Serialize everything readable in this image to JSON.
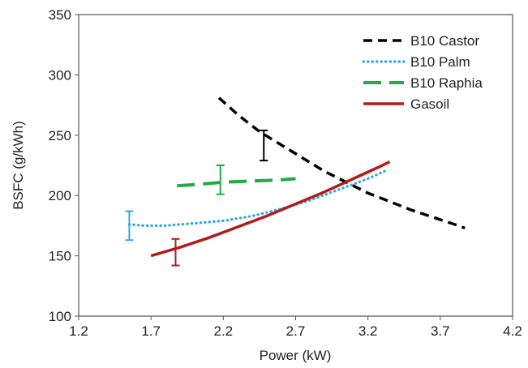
{
  "chart_data": {
    "type": "line",
    "xlabel": "Power (kW)",
    "ylabel": "BSFC (g/kWh)",
    "xlim": [
      1.2,
      4.2
    ],
    "ylim": [
      100,
      350
    ],
    "xticks": [
      1.2,
      1.7,
      2.2,
      2.7,
      3.2,
      3.7,
      4.2
    ],
    "xtick_labels": [
      "1.2",
      "1.7",
      "2.2",
      "2.7",
      "3.2",
      "3.7",
      "4.2"
    ],
    "yticks": [
      100,
      150,
      200,
      250,
      300,
      350
    ],
    "ytick_labels": [
      "100",
      "150",
      "200",
      "250",
      "300",
      "350"
    ],
    "grid": false,
    "legend_position": "top-right",
    "series": [
      {
        "name": "B10 Castor",
        "color": "#000000",
        "style": "dashed",
        "x": [
          2.17,
          2.3,
          2.45,
          2.6,
          2.75,
          2.9,
          3.05,
          3.2,
          3.35,
          3.5,
          3.65,
          3.8,
          3.87
        ],
        "y": [
          281,
          267,
          253,
          242,
          231,
          220,
          211,
          202,
          195,
          188,
          182,
          176,
          173
        ],
        "error_bar": {
          "x": 2.48,
          "low": 229,
          "high": 254
        }
      },
      {
        "name": "B10 Palm",
        "color": "#33aadd",
        "style": "dotted",
        "x": [
          1.55,
          1.65,
          1.8,
          2.0,
          2.2,
          2.4,
          2.6,
          2.8,
          3.0,
          3.2,
          3.33
        ],
        "y": [
          176,
          175,
          175,
          177,
          179,
          183,
          189,
          196,
          205,
          214,
          221
        ],
        "error_bar": {
          "x": 1.55,
          "low": 163,
          "high": 187
        }
      },
      {
        "name": "B10 Raphia",
        "color": "#22aa44",
        "style": "long-dash",
        "x": [
          1.88,
          2.0,
          2.2,
          2.4,
          2.6,
          2.7
        ],
        "y": [
          208,
          209,
          211,
          212,
          213,
          214
        ],
        "error_bar": {
          "x": 2.18,
          "low": 201,
          "high": 225
        }
      },
      {
        "name": "Gasoil",
        "color": "#b31b1b",
        "style": "solid",
        "x": [
          1.7,
          1.9,
          2.1,
          2.3,
          2.5,
          2.7,
          2.9,
          3.1,
          3.3,
          3.35
        ],
        "y": [
          150,
          157,
          165,
          174,
          183,
          193,
          203,
          214,
          225,
          228
        ],
        "error_bar": {
          "x": 1.87,
          "low": 142,
          "high": 164
        }
      }
    ]
  }
}
